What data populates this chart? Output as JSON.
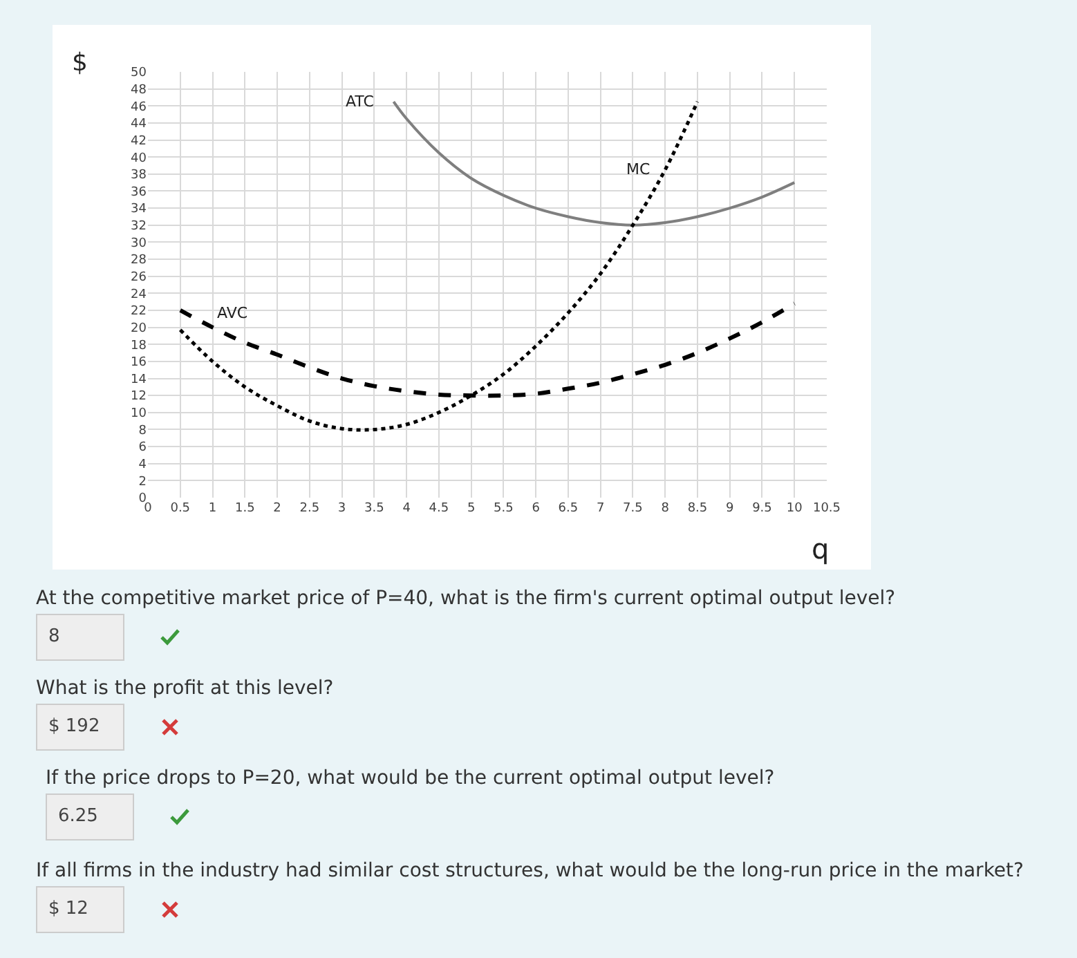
{
  "chart_data": {
    "type": "line",
    "xlabel": "q",
    "ylabel": "$",
    "x": [
      0.5,
      1,
      1.5,
      2,
      2.5,
      3,
      3.5,
      4,
      4.5,
      5,
      5.5,
      6,
      6.5,
      7,
      7.5,
      8,
      8.5,
      9,
      9.5,
      10
    ],
    "series": [
      {
        "name": "ATC",
        "color": "#7f7f7f",
        "line_style": "solid",
        "x": [
          3.8,
          4,
          4.5,
          5,
          5.5,
          6,
          6.5,
          7,
          7.5,
          8,
          8.5,
          9,
          9.5,
          10
        ],
        "values": [
          46.5,
          44.5,
          40.5,
          37.5,
          35.5,
          34,
          33,
          32.3,
          32,
          32.3,
          33,
          34,
          35.3,
          37
        ]
      },
      {
        "name": "AVC",
        "color": "#000000",
        "line_style": "dashed",
        "values": [
          22,
          20,
          18.2,
          16.8,
          15.3,
          14,
          13.1,
          12.5,
          12.1,
          12,
          12,
          12.2,
          12.8,
          13.5,
          14.5,
          15.6,
          17,
          18.7,
          20.6,
          22.8
        ]
      },
      {
        "name": "MC",
        "color": "#000000",
        "line_style": "dotted",
        "x": [
          0.5,
          1,
          1.5,
          2,
          2.5,
          3,
          3.5,
          4,
          4.5,
          5,
          5.5,
          6,
          6.5,
          7,
          7.5,
          8,
          8.5
        ],
        "values": [
          19.7,
          16,
          13,
          10.8,
          9,
          8.1,
          8,
          8.6,
          10,
          12,
          14.5,
          17.8,
          21.7,
          26.3,
          32,
          38.5,
          46.5
        ]
      }
    ],
    "xlim": [
      0,
      10.5
    ],
    "xticks": [
      0,
      0.5,
      1,
      1.5,
      2,
      2.5,
      3,
      3.5,
      4,
      4.5,
      5,
      5.5,
      6,
      6.5,
      7,
      7.5,
      8,
      8.5,
      9,
      9.5,
      10,
      10.5
    ],
    "ylim": [
      0,
      50
    ],
    "yticks": [
      0,
      2,
      4,
      6,
      8,
      10,
      12,
      14,
      16,
      18,
      20,
      22,
      24,
      26,
      28,
      30,
      32,
      34,
      36,
      38,
      40,
      42,
      44,
      46,
      48,
      50
    ],
    "grid": true,
    "legend": false,
    "annotations": [
      "At the competitive market price of P=40, what is the firm's current optimal output level?",
      "8",
      "What is the profit at this level?",
      "$ 192",
      "If the price drops to P=20, what would be the current optimal output level?",
      "6.25",
      "If all firms in the industry had similar cost structures, what would be the long-run price in the market?",
      "$ 12"
    ]
  }
}
